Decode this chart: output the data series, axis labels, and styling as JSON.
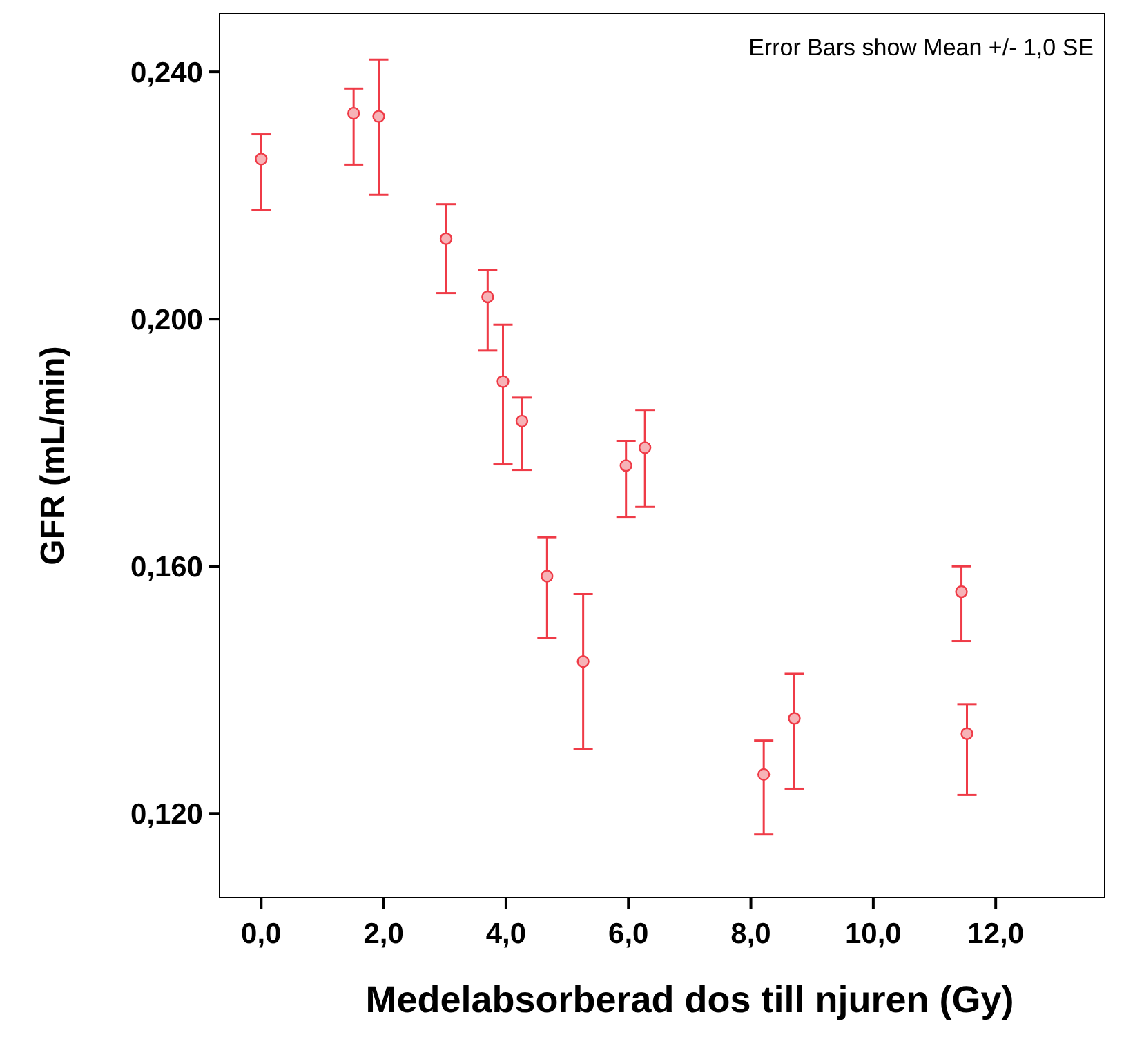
{
  "chart_data": {
    "type": "scatter",
    "xlabel": "Medelabsorberad dos till njuren (Gy)",
    "ylabel": "GFR (mL/min)",
    "annotations": [
      "Error Bars show Mean +/- 1,0 SE"
    ],
    "x": [
      0.0,
      1.51,
      1.92,
      3.02,
      3.7,
      3.95,
      4.26,
      4.67,
      5.26,
      5.96,
      6.27,
      8.21,
      8.71,
      11.44,
      11.53
    ],
    "series": [
      {
        "color": "#ef3b47",
        "values": [
          0.2259,
          0.2333,
          0.2328,
          0.213,
          0.2036,
          0.1899,
          0.1835,
          0.1584,
          0.1446,
          0.1763,
          0.1792,
          0.1263,
          0.1354,
          0.1559,
          0.1329
        ],
        "errors": [
          [
            0.2177,
            0.2299
          ],
          [
            0.225,
            0.2373
          ],
          [
            0.2201,
            0.242
          ],
          [
            0.2042,
            0.2186
          ],
          [
            0.1949,
            0.208
          ],
          [
            0.1765,
            0.1991
          ],
          [
            0.1756,
            0.1873
          ],
          [
            0.1484,
            0.1647
          ],
          [
            0.1304,
            0.1555
          ],
          [
            0.168,
            0.1803
          ],
          [
            0.1696,
            0.1852
          ],
          [
            0.1166,
            0.1318
          ],
          [
            0.124,
            0.1426
          ],
          [
            0.1479,
            0.16
          ],
          [
            0.123,
            0.1377
          ]
        ]
      }
    ],
    "xlim": [
      -0.68,
      13.78
    ],
    "ylim": [
      0.1064,
      0.2494
    ],
    "xticks": [
      {
        "value": 0,
        "label": "0,0"
      },
      {
        "value": 2,
        "label": "2,0"
      },
      {
        "value": 4,
        "label": "4,0"
      },
      {
        "value": 6,
        "label": "6,0"
      },
      {
        "value": 8,
        "label": "8,0"
      },
      {
        "value": 10,
        "label": "10,0"
      },
      {
        "value": 12,
        "label": "12,0"
      }
    ],
    "yticks": [
      {
        "value": 0.12,
        "label": "0,120"
      },
      {
        "value": 0.16,
        "label": "0,160"
      },
      {
        "value": 0.2,
        "label": "0,200"
      },
      {
        "value": 0.24,
        "label": "0,240"
      }
    ],
    "grid": false,
    "marker": "circle"
  }
}
